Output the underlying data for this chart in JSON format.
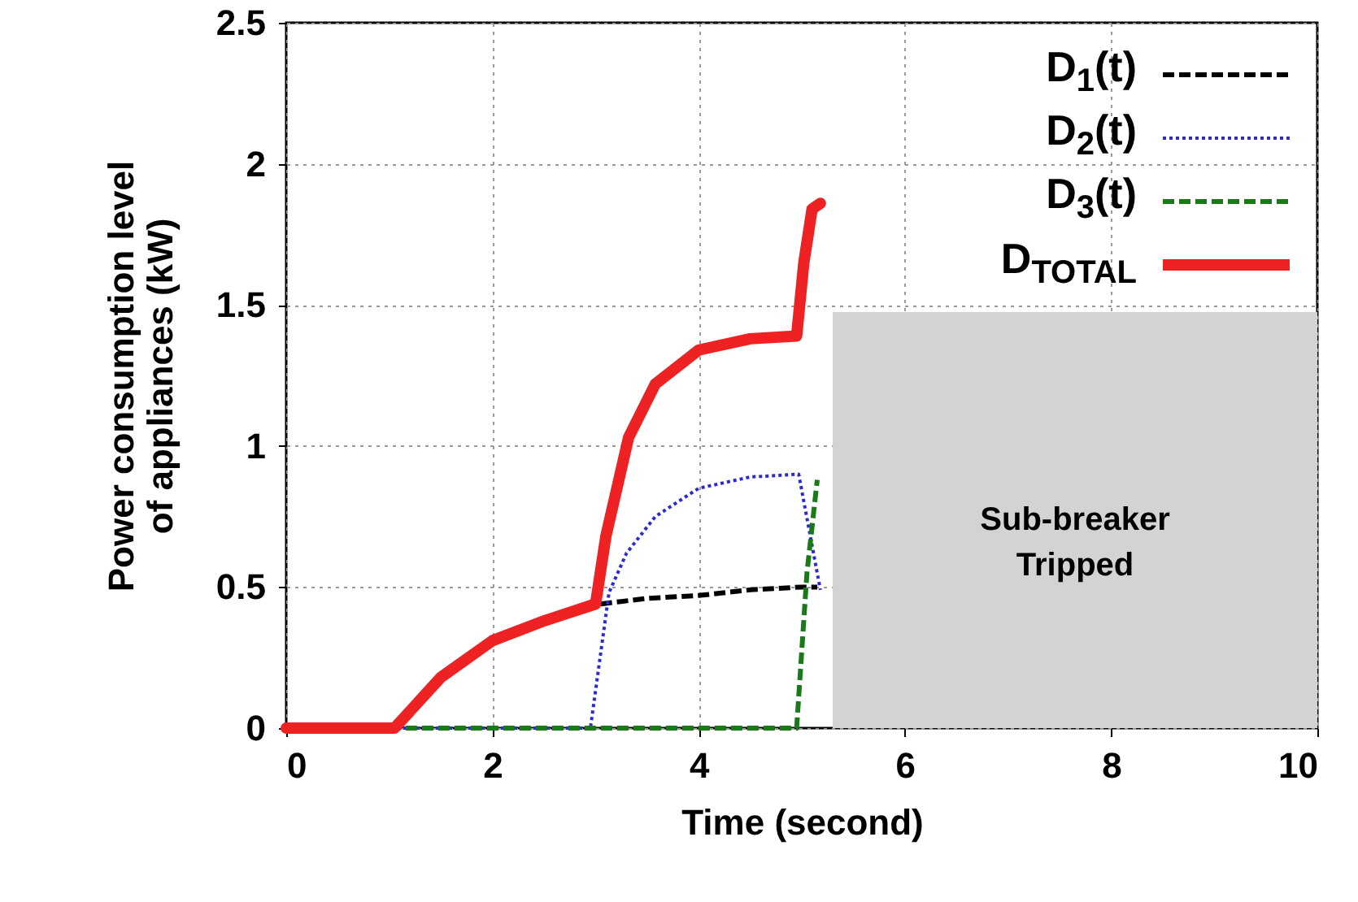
{
  "chart_data": {
    "type": "line",
    "xlabel": "Time (second)",
    "ylabel": "Power consumption level of appliances (kW)",
    "xlim": [
      0,
      10
    ],
    "xticks": [
      0,
      2,
      4,
      6,
      8,
      10
    ],
    "ylim": [
      0,
      2.5
    ],
    "yticks": [
      0,
      0.5,
      1,
      1.5,
      2,
      2.5
    ],
    "grid": true,
    "legend": "top right",
    "series": [
      {
        "name": "D$_{1}$(t)",
        "color": "#000000",
        "line_style": "dashed",
        "x": [
          3.05,
          3.5,
          4,
          4.5,
          5,
          5.15
        ],
        "values": [
          0.44,
          0.46,
          0.47,
          0.49,
          0.5,
          0.5
        ]
      },
      {
        "name": "D$_{2}$(t)",
        "color": "#2b2bd0",
        "line_style": "dotted",
        "x": [
          0,
          2.95,
          3.13,
          3.3,
          3.58,
          4,
          4.5,
          4.97,
          5.18
        ],
        "values": [
          0,
          0,
          0.48,
          0.62,
          0.75,
          0.85,
          0.89,
          0.9,
          0.49
        ]
      },
      {
        "name": "D$_{3}$(t)",
        "color": "#1a7a1a",
        "line_style": "dashed",
        "x": [
          1,
          4.95,
          5.05,
          5.15
        ],
        "values": [
          0,
          0,
          0.55,
          0.88
        ]
      },
      {
        "name": "D$_{TOTAL}$",
        "color": "#ee2222",
        "line_style": "solid",
        "x": [
          0,
          1.05,
          1.5,
          2,
          2.5,
          3,
          3.1,
          3.32,
          3.58,
          4,
          4.5,
          4.95,
          5.02,
          5.1,
          5.18
        ],
        "values": [
          0,
          0,
          0.18,
          0.31,
          0.38,
          0.44,
          0.68,
          1.03,
          1.22,
          1.34,
          1.38,
          1.39,
          1.65,
          1.84,
          1.86
        ]
      }
    ],
    "bands": [
      {
        "axis": "x",
        "from": 5.3,
        "to": 10,
        "label": "Sub-breaker Tripped",
        "color": "#d3d3d3"
      }
    ]
  }
}
